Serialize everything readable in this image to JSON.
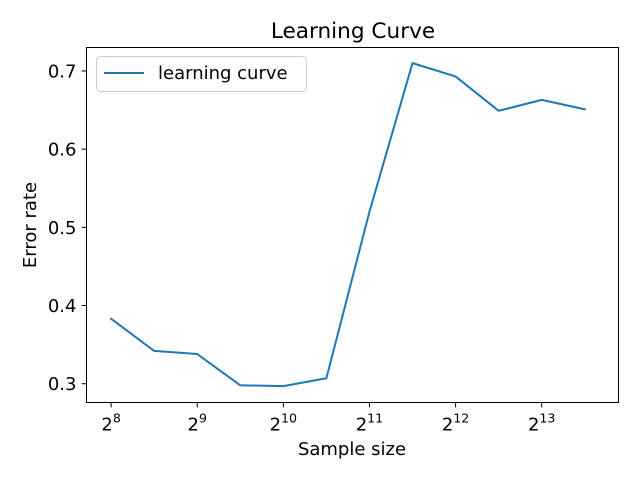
{
  "chart_data": {
    "type": "line",
    "title": "Learning Curve",
    "xlabel": "Sample size",
    "ylabel": "Error rate",
    "x_scale": "log2",
    "xlim": [
      210,
      15200
    ],
    "ylim": [
      0.276,
      0.73
    ],
    "xticks": [
      {
        "value": 256,
        "base": "2",
        "exp": "8"
      },
      {
        "value": 512,
        "base": "2",
        "exp": "9"
      },
      {
        "value": 1024,
        "base": "2",
        "exp": "10"
      },
      {
        "value": 2048,
        "base": "2",
        "exp": "11"
      },
      {
        "value": 4096,
        "base": "2",
        "exp": "12"
      },
      {
        "value": 8192,
        "base": "2",
        "exp": "13"
      }
    ],
    "yticks": [
      {
        "value": 0.3,
        "label": "0.3"
      },
      {
        "value": 0.4,
        "label": "0.4"
      },
      {
        "value": 0.5,
        "label": "0.5"
      },
      {
        "value": 0.6,
        "label": "0.6"
      },
      {
        "value": 0.7,
        "label": "0.7"
      }
    ],
    "grid": false,
    "legend_position": "top-left",
    "series": [
      {
        "name": "learning curve",
        "color": "#1f77b4",
        "x": [
          256,
          362,
          512,
          724,
          1024,
          1448,
          2048,
          2896,
          4096,
          5793,
          8192,
          11585
        ],
        "y": [
          0.383,
          0.342,
          0.338,
          0.298,
          0.297,
          0.307,
          0.52,
          0.71,
          0.693,
          0.649,
          0.663,
          0.651
        ]
      }
    ]
  }
}
